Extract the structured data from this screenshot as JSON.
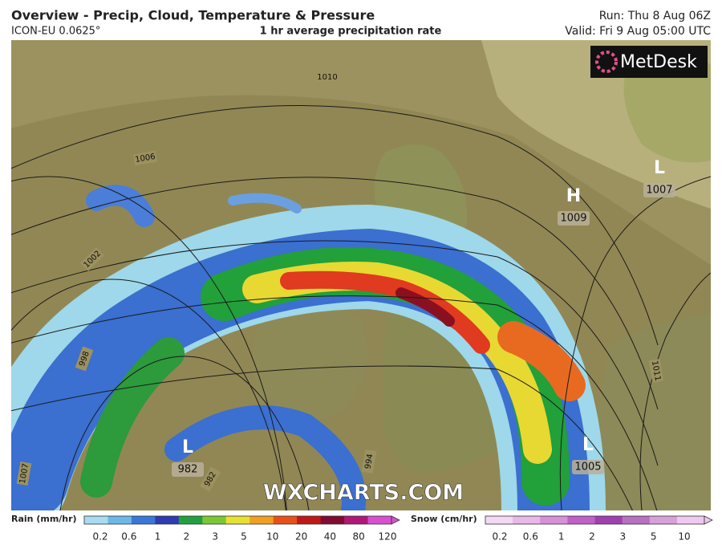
{
  "header": {
    "title": "Overview - Precip, Cloud, Temperature & Pressure",
    "model": "ICON-EU 0.0625°",
    "field": "1 hr average precipitation rate",
    "run": "Run: Thu 8 Aug 06Z",
    "valid": "Valid: Fri 9 Aug 05:00 UTC"
  },
  "logo": "MetDesk",
  "map": {
    "isobar_labels": [
      1010,
      1006,
      1002,
      998,
      994,
      1011,
      1007,
      982
    ],
    "pressure_systems": [
      {
        "letter": "H",
        "value": 1009
      },
      {
        "letter": "L",
        "value": 1007
      },
      {
        "letter": "L",
        "value": 982
      },
      {
        "letter": "L",
        "value": 1005
      }
    ],
    "watermark": "WXCHARTS.COM"
  },
  "legend": {
    "rain": {
      "label": "Rain (mm/hr)",
      "ticks": [
        0.2,
        0.6,
        1,
        2,
        3,
        5,
        10,
        20,
        40,
        80,
        120
      ]
    },
    "snow": {
      "label": "Snow (cm/hr)",
      "ticks": [
        0.2,
        0.6,
        1,
        2,
        3,
        5,
        10
      ]
    }
  }
}
